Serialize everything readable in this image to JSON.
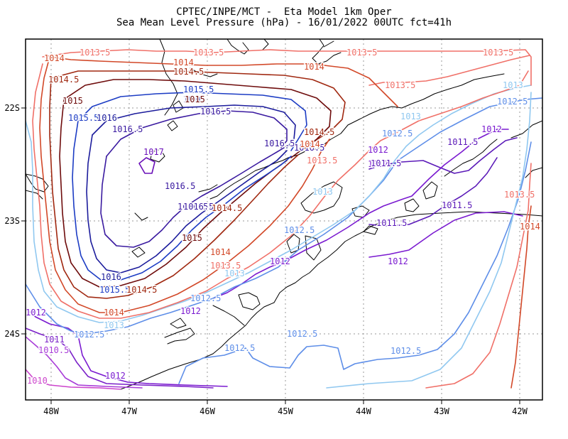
{
  "title": {
    "line1": "CPTEC/INPE/MCT -  Eta Model 1km Oper",
    "line2": "Sea Mean Level Pressure (hPa) - 16/01/2022 00UTC fct=41h"
  },
  "axes": {
    "x_ticks": [
      "48W",
      "47W",
      "46W",
      "45W",
      "44W",
      "43W",
      "42W"
    ],
    "y_ticks": [
      "22S",
      "23S",
      "24S"
    ]
  },
  "colors": {
    "c1010": "#cc44cc",
    "c1010_5": "#a83cd8",
    "c1011": "#7a20c8",
    "c1011_5": "#5b1ab8",
    "c1012": "#7a1ad0",
    "c1012_5": "#5e8ee8",
    "c1013": "#90c8f0",
    "c1013_5": "#f07068",
    "c1014": "#d24828",
    "c1014_5": "#a02810",
    "c1015": "#6e0c0c",
    "c1015_5": "#1c3cc4",
    "c1016": "#1c1c9c",
    "c1016_5": "#3a1aa0",
    "c1017": "#6a10b8",
    "coast": "#000000"
  },
  "contour_labels": [
    {
      "text": "1014",
      "color": "c1014"
    },
    {
      "text": "1013.5",
      "color": "c1013_5"
    },
    {
      "text": "1013.5",
      "color": "c1013_5"
    },
    {
      "text": "1013.5",
      "color": "c1013_5"
    },
    {
      "text": "1013.5",
      "color": "c1013_5"
    },
    {
      "text": "1014",
      "color": "c1014"
    },
    {
      "text": "1014.5",
      "color": "c1014_5"
    },
    {
      "text": "1014",
      "color": "c1014"
    },
    {
      "text": "1014.5",
      "color": "c1014_5"
    },
    {
      "text": "1015",
      "color": "c1015"
    },
    {
      "text": "1015.5",
      "color": "c1015_5"
    },
    {
      "text": "1016",
      "color": "c1016"
    },
    {
      "text": "1015",
      "color": "c1015"
    },
    {
      "text": "1016.5",
      "color": "c1016_5"
    },
    {
      "text": "1015.5",
      "color": "c1015_5"
    },
    {
      "text": "1016",
      "color": "c1016"
    },
    {
      "text": "1013.5",
      "color": "c1013_5"
    },
    {
      "text": "1013",
      "color": "c1013"
    },
    {
      "text": "1012.5",
      "color": "c1012_5"
    },
    {
      "text": "1013",
      "color": "c1013"
    },
    {
      "text": "1012",
      "color": "c1012"
    },
    {
      "text": "1016.5",
      "color": "c1016_5"
    },
    {
      "text": "1014.5",
      "color": "c1014_5"
    },
    {
      "text": "1017",
      "color": "c1017"
    },
    {
      "text": "1016.5",
      "color": "c1016_5"
    },
    {
      "text": "1016.5",
      "color": "c1016_5"
    },
    {
      "text": "1014",
      "color": "c1014"
    },
    {
      "text": "1013.5",
      "color": "c1013_5"
    },
    {
      "text": "1012.5",
      "color": "c1012_5"
    },
    {
      "text": "1012",
      "color": "c1012"
    },
    {
      "text": "1011.5",
      "color": "c1011_5"
    },
    {
      "text": "1012",
      "color": "c1012"
    },
    {
      "text": "1011.5",
      "color": "c1011_5"
    },
    {
      "text": "1016.5",
      "color": "c1016_5"
    },
    {
      "text": "1013",
      "color": "c1013"
    },
    {
      "text": "1013.5",
      "color": "c1013_5"
    },
    {
      "text": "1016.5",
      "color": "c1016_5"
    },
    {
      "text": "1016.5",
      "color": "c1016_5"
    },
    {
      "text": "1014.5",
      "color": "c1014_5"
    },
    {
      "text": "1011.5",
      "color": "c1011_5"
    },
    {
      "text": "1014",
      "color": "c1014"
    },
    {
      "text": "1015",
      "color": "c1015"
    },
    {
      "text": "1012.5",
      "color": "c1012_5"
    },
    {
      "text": "1011.5",
      "color": "c1011_5"
    },
    {
      "text": "1014",
      "color": "c1014"
    },
    {
      "text": "1013.5",
      "color": "c1013_5"
    },
    {
      "text": "1012",
      "color": "c1012"
    },
    {
      "text": "1012",
      "color": "c1012"
    },
    {
      "text": "1013",
      "color": "c1013"
    },
    {
      "text": "1016",
      "color": "c1016"
    },
    {
      "text": "1015.5",
      "color": "c1015_5"
    },
    {
      "text": "1014.5",
      "color": "c1014_5"
    },
    {
      "text": "1012.5",
      "color": "c1012_5"
    },
    {
      "text": "1012",
      "color": "c1012"
    },
    {
      "text": "1014",
      "color": "c1014"
    },
    {
      "text": "1013",
      "color": "c1013"
    },
    {
      "text": "1012",
      "color": "c1012"
    },
    {
      "text": "1011",
      "color": "c1011"
    },
    {
      "text": "1012.5",
      "color": "c1012_5"
    },
    {
      "text": "1012.5",
      "color": "c1012_5"
    },
    {
      "text": "1010.5",
      "color": "c1010_5"
    },
    {
      "text": "1012.5",
      "color": "c1012_5"
    },
    {
      "text": "1012.5",
      "color": "c1012_5"
    },
    {
      "text": "1012",
      "color": "c1012"
    },
    {
      "text": "1010",
      "color": "c1010"
    }
  ]
}
